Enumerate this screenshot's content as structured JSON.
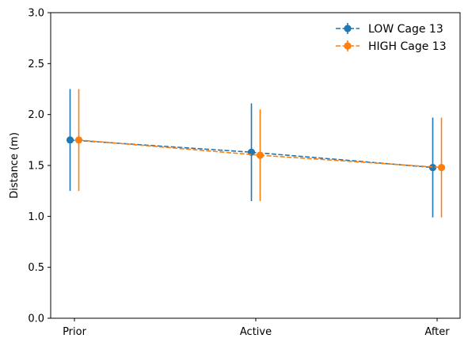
{
  "chart_data": {
    "type": "line",
    "title": "",
    "xlabel": "",
    "ylabel": "Distance (m)",
    "categories": [
      "Prior",
      "Active",
      "After"
    ],
    "ylim": [
      0.0,
      3.0
    ],
    "yticks": [
      "0.0",
      "0.5",
      "1.0",
      "1.5",
      "2.0",
      "2.5",
      "3.0"
    ],
    "grid": false,
    "legend_position": "top-right",
    "series": [
      {
        "name": "LOW Cage 13",
        "color": "#1f77b4",
        "line_style": "dashed",
        "marker": "circle",
        "values": [
          1.75,
          1.63,
          1.48
        ],
        "error_low": [
          1.25,
          1.15,
          0.99
        ],
        "error_high": [
          2.25,
          2.11,
          1.97
        ]
      },
      {
        "name": "HIGH Cage 13",
        "color": "#ff7f0e",
        "line_style": "dashed",
        "marker": "circle",
        "values": [
          1.75,
          1.6,
          1.48
        ],
        "error_low": [
          1.25,
          1.15,
          0.99
        ],
        "error_high": [
          2.25,
          2.05,
          1.97
        ]
      }
    ]
  }
}
